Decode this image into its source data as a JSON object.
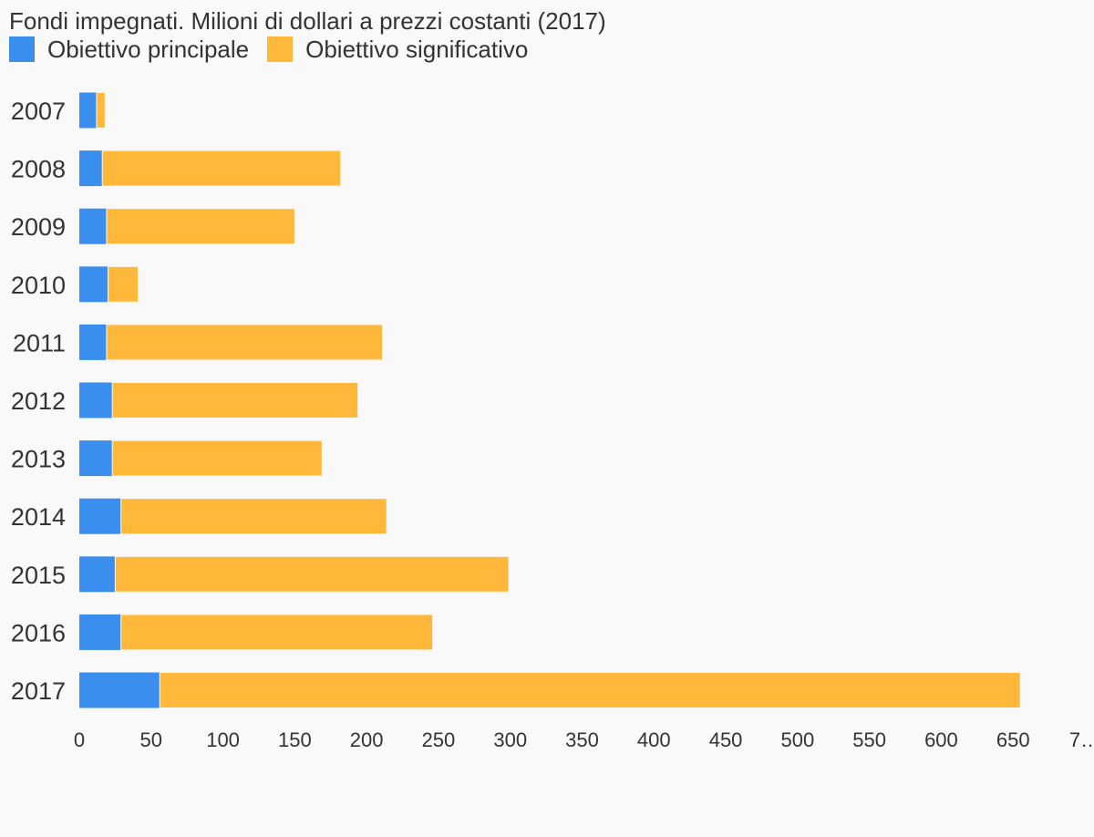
{
  "chart_data": {
    "type": "bar",
    "orientation": "horizontal",
    "stacked": true,
    "title": "Fondi impegnati. Milioni di dollari a prezzi costanti (2017)",
    "categories": [
      "2007",
      "2008",
      "2009",
      "2010",
      "2011",
      "2012",
      "2013",
      "2014",
      "2015",
      "2016",
      "2017"
    ],
    "series": [
      {
        "name": "Obiettivo principale",
        "color": "#3a8fee",
        "values": [
          12,
          16,
          19,
          20,
          19,
          23,
          23,
          29,
          25,
          29,
          56
        ]
      },
      {
        "name": "Obiettivo significativo",
        "color": "#ffb83a",
        "values": [
          6,
          166,
          131,
          21,
          192,
          171,
          146,
          185,
          274,
          217,
          599
        ]
      }
    ],
    "xlim": [
      0,
      700
    ],
    "xticks": [
      "0",
      "50",
      "100",
      "150",
      "200",
      "250",
      "300",
      "350",
      "400",
      "450",
      "500",
      "550",
      "600",
      "650",
      "7…"
    ],
    "grid": false,
    "legend_position": "top-left"
  }
}
